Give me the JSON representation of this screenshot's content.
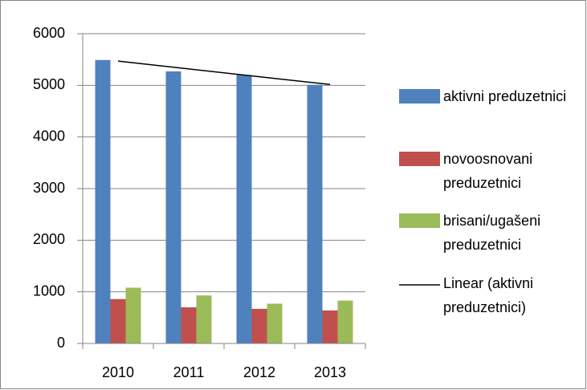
{
  "chart_data": {
    "type": "bar",
    "categories": [
      "2010",
      "2011",
      "2012",
      "2013"
    ],
    "series": [
      {
        "name": "aktivni preduzetnici",
        "color": "#4f81bd",
        "values": [
          5490,
          5270,
          5200,
          5010
        ]
      },
      {
        "name": "novoosnovani preduzetnici",
        "color": "#c0504d",
        "values": [
          860,
          700,
          670,
          640
        ]
      },
      {
        "name": "brisani/ugašeni preduzetnici",
        "color": "#9bbb59",
        "values": [
          1080,
          930,
          770,
          830
        ]
      },
      {
        "name": "Linear (aktivni preduzetnici)",
        "color": "#000000",
        "type": "line",
        "values": [
          5469,
          5318,
          5167,
          5016
        ]
      }
    ],
    "ylim": [
      0,
      6000
    ],
    "yticks": [
      0,
      1000,
      2000,
      3000,
      4000,
      5000,
      6000
    ],
    "grid": true,
    "legend": "right"
  }
}
